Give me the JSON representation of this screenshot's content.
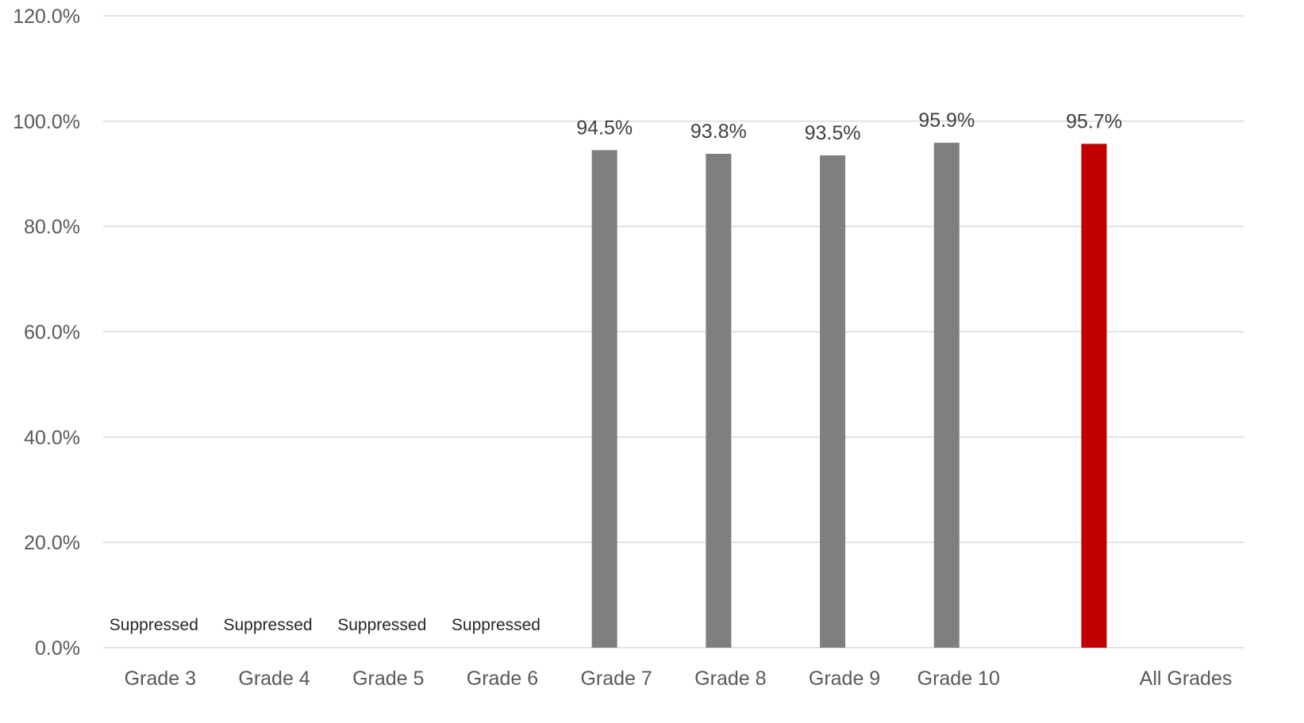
{
  "chart_data": {
    "type": "bar",
    "categories": [
      "Grade 3",
      "Grade 4",
      "Grade 5",
      "Grade 6",
      "Grade 7",
      "Grade 8",
      "Grade 9",
      "Grade 10",
      "All Grades"
    ],
    "values": [
      null,
      null,
      null,
      null,
      94.5,
      93.8,
      93.5,
      95.9,
      95.7
    ],
    "data_labels": [
      "Suppressed",
      "Suppressed",
      "Suppressed",
      "Suppressed",
      "94.5%",
      "93.8%",
      "93.5%",
      "95.9%",
      "95.7%"
    ],
    "bar_colors": [
      "#7f7f7f",
      "#7f7f7f",
      "#7f7f7f",
      "#7f7f7f",
      "#7f7f7f",
      "#7f7f7f",
      "#7f7f7f",
      "#7f7f7f",
      "#c00000"
    ],
    "ylim": [
      0,
      120
    ],
    "yticks": [
      0,
      20,
      40,
      60,
      80,
      100,
      120
    ],
    "ytick_labels": [
      "0.0%",
      "20.0%",
      "40.0%",
      "60.0%",
      "80.0%",
      "100.0%",
      "120.0%"
    ],
    "grid": true,
    "legend": "none",
    "title": "",
    "xlabel": "",
    "ylabel": ""
  }
}
